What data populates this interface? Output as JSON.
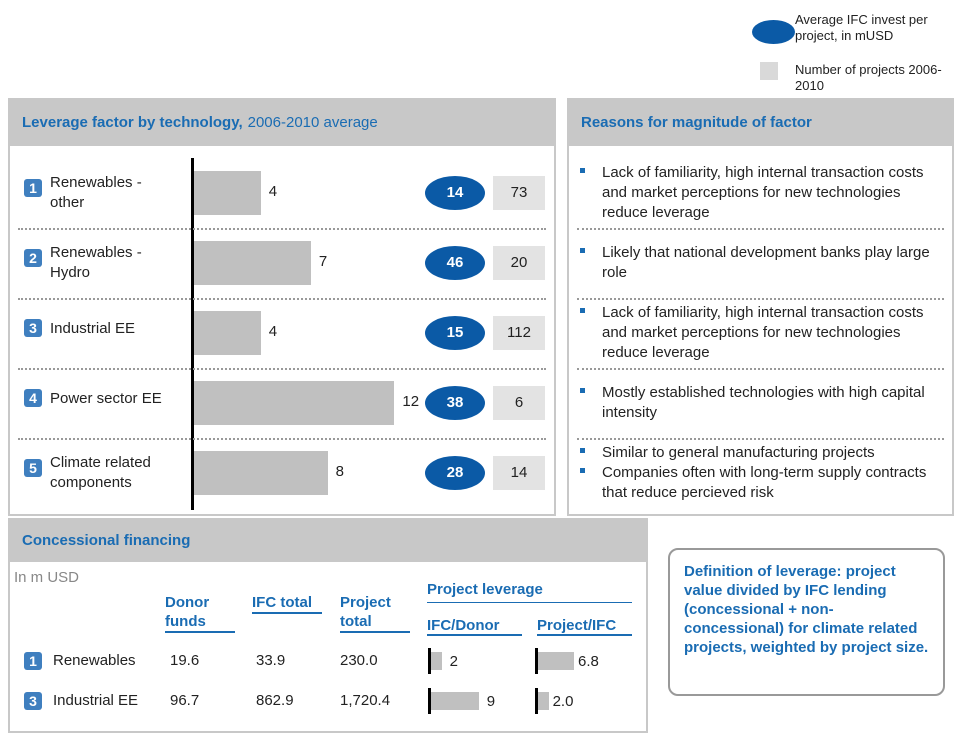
{
  "legend": {
    "invest": "Average IFC invest per project, in mUSD",
    "projects": "Number of projects 2006-2010"
  },
  "leverage_panel": {
    "title": "Leverage factor by technology,",
    "subtitle": "2006-2010 average",
    "rows": [
      {
        "number": "1",
        "label": "Renewables - other",
        "leverage": 4,
        "invest": 14,
        "projects": 73
      },
      {
        "number": "2",
        "label": "Renewables - Hydro",
        "leverage": 7,
        "invest": 46,
        "projects": 20
      },
      {
        "number": "3",
        "label": "Industrial EE",
        "leverage": 4,
        "invest": 15,
        "projects": 112
      },
      {
        "number": "4",
        "label": "Power sector EE",
        "leverage": 12,
        "invest": 38,
        "projects": 6
      },
      {
        "number": "5",
        "label": "Climate related components",
        "leverage": 8,
        "invest": 28,
        "projects": 14
      }
    ]
  },
  "reasons_panel": {
    "title": "Reasons for magnitude of factor",
    "rows": [
      [
        "Lack of familiarity, high internal transaction costs and market perceptions for new technologies reduce leverage"
      ],
      [
        "Likely that national development banks play large role"
      ],
      [
        "Lack of familiarity, high internal transaction costs and market perceptions for new technologies reduce leverage"
      ],
      [
        "Mostly established technologies with high capital intensity"
      ],
      [
        "Similar to general manufacturing projects",
        "Companies often with long-term supply contracts that reduce percieved risk"
      ]
    ]
  },
  "concessional": {
    "title": "Concessional financing",
    "unit": "In m USD",
    "columns": {
      "donor": "Donor funds",
      "ifc": "IFC total",
      "project": "Project total"
    },
    "leverage_title": "Project leverage",
    "leverage_columns": {
      "ifc_donor": "IFC/Donor",
      "project_ifc": "Project/IFC"
    },
    "rows": [
      {
        "number": "1",
        "label": "Renewables",
        "donor": "19.6",
        "ifc": "33.9",
        "project": "230.0",
        "ifc_donor": 2,
        "project_ifc": 6.8,
        "project_ifc_label": "6.8"
      },
      {
        "number": "3",
        "label": "Industrial EE",
        "donor": "96.7",
        "ifc": "862.9",
        "project": "1,720.4",
        "ifc_donor": 9,
        "project_ifc": 2,
        "project_ifc_label": "2.0"
      }
    ]
  },
  "definition": "Definition of leverage: project value divided by IFC lending (concessional + non-concessional) for climate related projects, weighted by project size."
}
